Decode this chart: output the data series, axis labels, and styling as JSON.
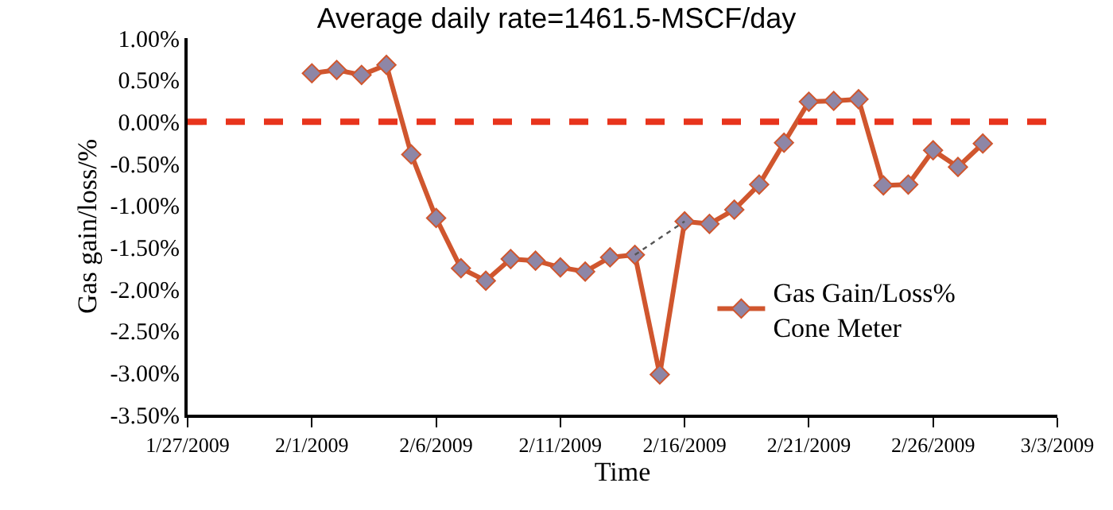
{
  "chart_data": {
    "type": "line",
    "title": "Average daily rate=1461.5-MSCF/day",
    "xlabel": "Time",
    "ylabel": "Gas gain/loss/%",
    "series": [
      {
        "name": "Gas Gain/Loss%\nCone Meter",
        "color": "#d0562e",
        "marker": "diamond",
        "x": [
          "2009-02-01",
          "2009-02-02",
          "2009-02-03",
          "2009-02-04",
          "2009-02-05",
          "2009-02-06",
          "2009-02-07",
          "2009-02-08",
          "2009-02-09",
          "2009-02-10",
          "2009-02-11",
          "2009-02-12",
          "2009-02-13",
          "2009-02-14",
          "2009-02-15",
          "2009-02-16",
          "2009-02-17",
          "2009-02-18",
          "2009-02-19",
          "2009-02-20",
          "2009-02-21",
          "2009-02-22",
          "2009-02-23",
          "2009-02-24",
          "2009-02-25",
          "2009-02-26",
          "2009-02-27",
          "2009-02-28"
        ],
        "values": [
          0.58,
          0.62,
          0.56,
          0.68,
          -0.39,
          -1.15,
          -1.75,
          -1.9,
          -1.64,
          -1.66,
          -1.74,
          -1.79,
          -1.62,
          -1.59,
          -3.02,
          -1.19,
          -1.22,
          -1.05,
          -0.75,
          -0.25,
          0.24,
          0.25,
          0.27,
          -0.76,
          -0.75,
          -0.34,
          -0.54,
          -0.26
        ]
      },
      {
        "type": "line",
        "color": "#555555",
        "line_style": "dotted",
        "marker": "none",
        "x": [
          "2009-02-14",
          "2009-02-16"
        ],
        "values": [
          -1.59,
          -1.19
        ]
      }
    ],
    "ref_lines": [
      {
        "axis": "y",
        "value": 0,
        "color": "#e8341c",
        "line_style": "dashed"
      }
    ],
    "xlim": [
      "2009-01-27",
      "2009-03-03"
    ],
    "xticks": [
      {
        "value": "2009-01-27",
        "label": "1/27/2009"
      },
      {
        "value": "2009-02-01",
        "label": "2/1/2009"
      },
      {
        "value": "2009-02-06",
        "label": "2/6/2009"
      },
      {
        "value": "2009-02-11",
        "label": "2/11/2009"
      },
      {
        "value": "2009-02-16",
        "label": "2/16/2009"
      },
      {
        "value": "2009-02-21",
        "label": "2/21/2009"
      },
      {
        "value": "2009-02-26",
        "label": "2/26/2009"
      },
      {
        "value": "2009-03-03",
        "label": "3/3/2009"
      }
    ],
    "ylim": [
      -3.5,
      1.0
    ],
    "yticks": [
      {
        "value": 1.0,
        "label": "1.00%"
      },
      {
        "value": 0.5,
        "label": "0.50%"
      },
      {
        "value": 0,
        "label": "0.00%"
      },
      {
        "value": -0.5,
        "label": "-0.50%"
      },
      {
        "value": -1.0,
        "label": "-1.00%"
      },
      {
        "value": -1.5,
        "label": "-1.50%"
      },
      {
        "value": -2.0,
        "label": "-2.00%"
      },
      {
        "value": -2.5,
        "label": "-2.50%"
      },
      {
        "value": -3.0,
        "label": "-3.00%"
      },
      {
        "value": -3.5,
        "label": "-3.50%"
      }
    ],
    "legend": "bottom right"
  }
}
